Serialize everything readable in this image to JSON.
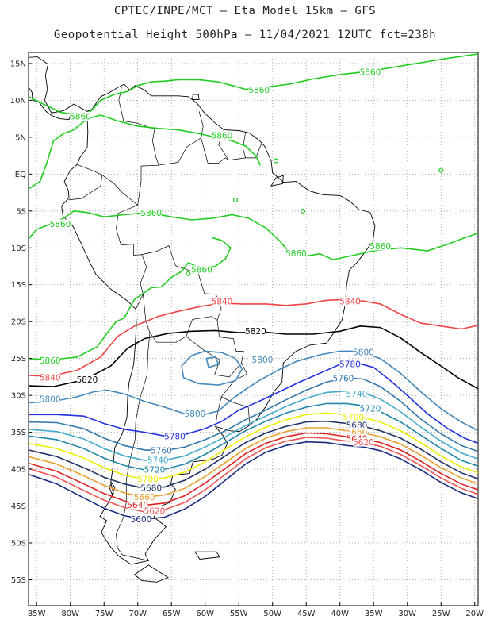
{
  "header": {
    "line1": "CPTEC/INPE/MCT –  Eta Model 15km – GFS",
    "line2": "Geopotential Height 500hPa – 11/04/2021 12UTC fct=238h"
  },
  "map": {
    "lat_ticks": [
      "15N",
      "10N",
      "5N",
      "EQ",
      "5S",
      "10S",
      "15S",
      "20S",
      "25S",
      "30S",
      "35S",
      "40S",
      "45S",
      "50S",
      "55S"
    ],
    "lon_ticks": [
      "85W",
      "80W",
      "75W",
      "70W",
      "65W",
      "60W",
      "55W",
      "50W",
      "45W",
      "40W",
      "35W",
      "30W",
      "25W",
      "20W"
    ],
    "extent": {
      "lon_min": -86.2,
      "lon_max": -19.5,
      "lat_min": -58.5,
      "lat_max": 16.5
    },
    "colors": {
      "5860": "#22cc22",
      "5840": "#ee4444",
      "5820": "#000000",
      "5800": "#4488bb",
      "5780": "#2233dd",
      "5760": "#3377aa",
      "5740": "#44aacc",
      "5720": "#2288aa",
      "5700": "#eeee00",
      "5680": "#223366",
      "5660": "#e8a030",
      "5640": "#dd2222",
      "5620": "#ee5555",
      "5600": "#1a2a80",
      "coast": "#000000",
      "grid": "#999999"
    },
    "contour_labels": [
      {
        "text": "5860",
        "lon": -35.5,
        "lat": 13.8,
        "level": "5860"
      },
      {
        "text": "5860",
        "lon": -52.0,
        "lat": 11.4,
        "level": "5860"
      },
      {
        "text": "5860",
        "lon": -78.5,
        "lat": 7.8,
        "level": "5860"
      },
      {
        "text": "5860",
        "lon": -57.5,
        "lat": 5.2,
        "level": "5860"
      },
      {
        "text": "5860",
        "lon": -68.0,
        "lat": -5.3,
        "level": "5860"
      },
      {
        "text": "5860",
        "lon": -81.5,
        "lat": -6.8,
        "level": "5860"
      },
      {
        "text": "5860",
        "lon": -34.0,
        "lat": -9.8,
        "level": "5860"
      },
      {
        "text": "5860",
        "lon": -46.5,
        "lat": -10.8,
        "level": "5860"
      },
      {
        "text": "5860",
        "lon": -60.5,
        "lat": -13.0,
        "level": "5860"
      },
      {
        "text": "5860",
        "lon": -83.0,
        "lat": -25.3,
        "level": "5860"
      },
      {
        "text": "5840",
        "lon": -57.5,
        "lat": -17.3,
        "level": "5840"
      },
      {
        "text": "5840",
        "lon": -38.5,
        "lat": -17.3,
        "level": "5840"
      },
      {
        "text": "5840",
        "lon": -83.0,
        "lat": -27.6,
        "level": "5840"
      },
      {
        "text": "5820",
        "lon": -52.5,
        "lat": -21.3,
        "level": "5820"
      },
      {
        "text": "5820",
        "lon": -77.5,
        "lat": -27.9,
        "level": "5820"
      },
      {
        "text": "5800",
        "lon": -51.5,
        "lat": -25.2,
        "level": "5800"
      },
      {
        "text": "5800",
        "lon": -36.5,
        "lat": -24.2,
        "level": "5800"
      },
      {
        "text": "5800",
        "lon": -83.0,
        "lat": -30.5,
        "level": "5800"
      },
      {
        "text": "5800",
        "lon": -61.5,
        "lat": -32.5,
        "level": "5800"
      },
      {
        "text": "5780",
        "lon": -38.5,
        "lat": -25.8,
        "level": "5780"
      },
      {
        "text": "5780",
        "lon": -64.5,
        "lat": -35.6,
        "level": "5780"
      },
      {
        "text": "5760",
        "lon": -39.5,
        "lat": -27.7,
        "level": "5760"
      },
      {
        "text": "5760",
        "lon": -66.5,
        "lat": -37.5,
        "level": "5760"
      },
      {
        "text": "5740",
        "lon": -37.5,
        "lat": -29.8,
        "level": "5740"
      },
      {
        "text": "5740",
        "lon": -67.0,
        "lat": -38.8,
        "level": "5740"
      },
      {
        "text": "5720",
        "lon": -35.5,
        "lat": -31.8,
        "level": "5720"
      },
      {
        "text": "5720",
        "lon": -67.5,
        "lat": -40.1,
        "level": "5720"
      },
      {
        "text": "5700",
        "lon": -38.0,
        "lat": -33.0,
        "level": "5700"
      },
      {
        "text": "5700",
        "lon": -68.5,
        "lat": -41.4,
        "level": "5700"
      },
      {
        "text": "5680",
        "lon": -37.5,
        "lat": -34.1,
        "level": "5680"
      },
      {
        "text": "5680",
        "lon": -68.0,
        "lat": -42.6,
        "level": "5680"
      },
      {
        "text": "5660",
        "lon": -37.5,
        "lat": -35.0,
        "level": "5660"
      },
      {
        "text": "5660",
        "lon": -69.0,
        "lat": -43.8,
        "level": "5660"
      },
      {
        "text": "5640",
        "lon": -37.5,
        "lat": -35.9,
        "level": "5640"
      },
      {
        "text": "5640",
        "lon": -70.0,
        "lat": -44.9,
        "level": "5640"
      },
      {
        "text": "5620",
        "lon": -36.5,
        "lat": -36.4,
        "level": "5620"
      },
      {
        "text": "5620",
        "lon": -67.5,
        "lat": -45.7,
        "level": "5620"
      },
      {
        "text": "5600",
        "lon": -69.5,
        "lat": -46.8,
        "level": "5600"
      }
    ]
  }
}
